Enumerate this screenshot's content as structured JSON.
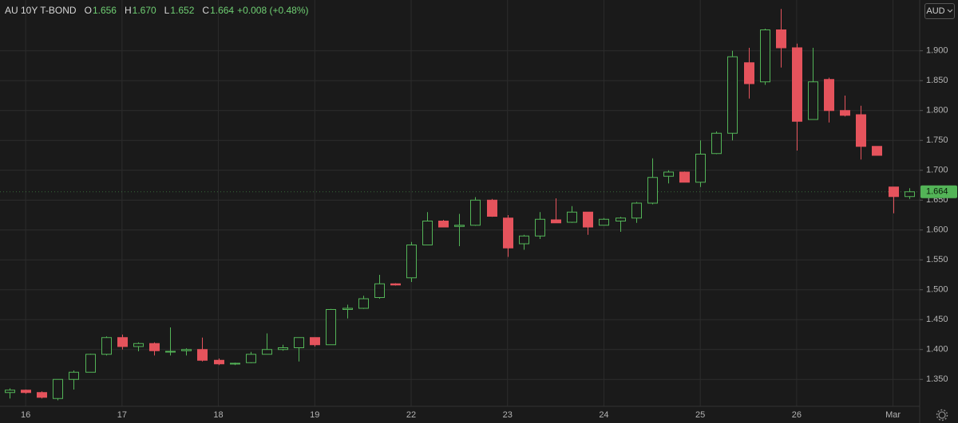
{
  "header": {
    "symbol": "AU 10Y T-BOND",
    "ohlc": [
      [
        "O",
        "1.656"
      ],
      [
        "H",
        "1.670"
      ],
      [
        "L",
        "1.652"
      ],
      [
        "C",
        "1.664"
      ]
    ],
    "change": "+0.008 (+0.48%)",
    "currency": "AUD"
  },
  "chart_data": {
    "type": "candlestick",
    "categories": [
      null,
      "16",
      null,
      null,
      null,
      null,
      null,
      "17",
      null,
      null,
      null,
      null,
      null,
      "18",
      null,
      null,
      null,
      null,
      null,
      "19",
      null,
      null,
      null,
      null,
      null,
      "22",
      null,
      null,
      null,
      null,
      null,
      "23",
      null,
      null,
      null,
      null,
      null,
      "24",
      null,
      null,
      null,
      null,
      null,
      "25",
      null,
      null,
      null,
      null,
      null,
      "26",
      null,
      null,
      null,
      null,
      null,
      "Mar",
      null
    ],
    "open": [
      1.328,
      1.332,
      1.328,
      1.318,
      1.35,
      1.362,
      1.392,
      1.42,
      1.405,
      1.41,
      1.396,
      1.398,
      1.4,
      1.382,
      1.376,
      1.378,
      1.392,
      1.4,
      1.403,
      1.42,
      1.408,
      1.467,
      1.469,
      1.487,
      1.51,
      1.52,
      1.575,
      1.615,
      1.606,
      1.608,
      1.65,
      1.62,
      1.577,
      1.59,
      1.617,
      1.613,
      1.63,
      1.608,
      1.615,
      1.62,
      1.645,
      1.69,
      1.697,
      1.68,
      1.728,
      1.762,
      1.88,
      1.848,
      1.935,
      1.905,
      1.785,
      1.852,
      1.8,
      1.793,
      1.74,
      1.672,
      1.656
    ],
    "high": [
      1.335,
      1.333,
      1.33,
      1.35,
      1.365,
      1.393,
      1.422,
      1.425,
      1.412,
      1.412,
      1.437,
      1.402,
      1.42,
      1.385,
      1.378,
      1.396,
      1.427,
      1.408,
      1.42,
      1.42,
      1.468,
      1.475,
      1.49,
      1.525,
      1.511,
      1.58,
      1.63,
      1.617,
      1.627,
      1.655,
      1.652,
      1.625,
      1.592,
      1.63,
      1.653,
      1.64,
      1.63,
      1.62,
      1.622,
      1.647,
      1.72,
      1.7,
      1.698,
      1.75,
      1.765,
      1.9,
      1.905,
      1.937,
      1.97,
      1.912,
      1.905,
      1.855,
      1.825,
      1.808,
      1.74,
      1.672,
      1.67
    ],
    "low": [
      1.318,
      1.326,
      1.318,
      1.315,
      1.333,
      1.362,
      1.39,
      1.4,
      1.397,
      1.39,
      1.39,
      1.39,
      1.38,
      1.374,
      1.374,
      1.377,
      1.392,
      1.398,
      1.38,
      1.405,
      1.408,
      1.452,
      1.468,
      1.485,
      1.507,
      1.513,
      1.575,
      1.605,
      1.573,
      1.607,
      1.622,
      1.555,
      1.567,
      1.585,
      1.612,
      1.612,
      1.592,
      1.608,
      1.597,
      1.612,
      1.643,
      1.678,
      1.68,
      1.672,
      1.727,
      1.75,
      1.82,
      1.843,
      1.872,
      1.733,
      1.785,
      1.78,
      1.79,
      1.718,
      1.725,
      1.628,
      1.652
    ],
    "close": [
      1.332,
      1.328,
      1.32,
      1.35,
      1.362,
      1.392,
      1.42,
      1.405,
      1.41,
      1.398,
      1.397,
      1.4,
      1.382,
      1.376,
      1.377,
      1.392,
      1.4,
      1.403,
      1.42,
      1.408,
      1.467,
      1.469,
      1.485,
      1.51,
      1.508,
      1.575,
      1.615,
      1.605,
      1.608,
      1.65,
      1.623,
      1.57,
      1.59,
      1.618,
      1.612,
      1.63,
      1.605,
      1.618,
      1.62,
      1.645,
      1.688,
      1.697,
      1.68,
      1.727,
      1.762,
      1.89,
      1.845,
      1.935,
      1.905,
      1.782,
      1.848,
      1.8,
      1.792,
      1.74,
      1.725,
      1.656,
      1.664
    ],
    "up_color": "#53b457",
    "down_color": "#e5535c",
    "last_price": 1.664,
    "ylim": [
      1.305,
      1.985
    ],
    "yticks": [
      {
        "value": 1.35,
        "label": "1.350"
      },
      {
        "value": 1.4,
        "label": "1.400"
      },
      {
        "value": 1.45,
        "label": "1.450"
      },
      {
        "value": 1.5,
        "label": "1.500"
      },
      {
        "value": 1.55,
        "label": "1.550"
      },
      {
        "value": 1.6,
        "label": "1.600"
      },
      {
        "value": 1.65,
        "label": "1.650"
      },
      {
        "value": 1.7,
        "label": "1.700"
      },
      {
        "value": 1.75,
        "label": "1.750"
      },
      {
        "value": 1.8,
        "label": "1.800"
      },
      {
        "value": 1.85,
        "label": "1.850"
      },
      {
        "value": 1.9,
        "label": "1.900"
      }
    ],
    "grid": true
  }
}
